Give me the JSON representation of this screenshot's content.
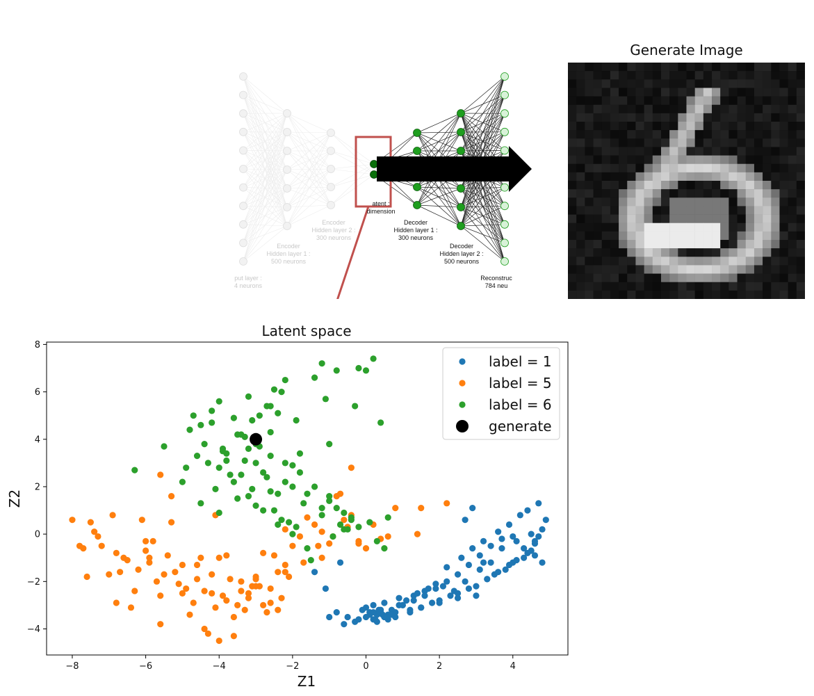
{
  "network": {
    "labels": {
      "input": [
        "put layer :",
        "4 neurons"
      ],
      "enc1": [
        "Encoder",
        "Hidden layer 1 :",
        "500 neurons"
      ],
      "enc2": [
        "Encoder",
        "Hidden layer 2 :",
        "300 neurons"
      ],
      "latent": [
        "atent :",
        "dimension"
      ],
      "dec1": [
        "Decoder",
        "Hidden layer 1 :",
        "300 neurons"
      ],
      "dec2": [
        "Decoder",
        "Hidden layer 2 :",
        "500 neurons"
      ],
      "recon": [
        "Reconstruc",
        "784 neu"
      ]
    },
    "colors": {
      "arrow": "#000000",
      "highlight_box": "#c0504d",
      "node_active": "#1f9e1f",
      "node_latent": "#0a6e0a",
      "node_faded": "#dddddd"
    }
  },
  "generated_image": {
    "title": "Generate Image"
  },
  "chart_data": {
    "type": "scatter",
    "title": "Latent space",
    "xlabel": "Z1",
    "ylabel": "Z2",
    "xlim": [
      -8.7,
      5.5
    ],
    "ylim": [
      -5.1,
      8.1
    ],
    "xticks": [
      -8,
      -6,
      -4,
      -2,
      0,
      2,
      4
    ],
    "yticks": [
      -4,
      -2,
      0,
      2,
      4,
      6,
      8
    ],
    "legend_position": "top-right",
    "series": [
      {
        "name": "label = 1",
        "color": "#1f77b4",
        "x": [
          0.1,
          0.3,
          0.5,
          0.2,
          0.4,
          0.0,
          0.6,
          0.8,
          1.0,
          1.2,
          1.5,
          1.8,
          2.0,
          2.3,
          2.5,
          2.8,
          3.0,
          3.3,
          3.5,
          3.8,
          4.0,
          4.3,
          4.5,
          4.6,
          4.7,
          4.8,
          4.9,
          4.4,
          4.2,
          3.9,
          3.6,
          3.2,
          2.9,
          2.6,
          2.2,
          1.9,
          1.6,
          1.3,
          1.1,
          0.9,
          0.7,
          -0.3,
          -0.5,
          -0.8,
          -0.6,
          -1.0,
          -0.2,
          0.2,
          0.5,
          0.9,
          1.4,
          1.7,
          2.1,
          2.4,
          2.7,
          3.1,
          3.4,
          3.7,
          4.1,
          4.5,
          3.0,
          2.5,
          2.0,
          1.5,
          1.2,
          0.8,
          0.6,
          0.3,
          0.1,
          0.0,
          -0.1,
          0.4,
          0.7,
          1.0,
          1.3,
          1.6,
          1.9,
          2.2,
          2.5,
          2.8,
          3.1,
          3.4,
          3.7,
          4.0,
          4.3,
          4.6,
          4.8,
          3.3,
          3.6,
          3.9,
          4.1,
          4.4,
          4.6,
          4.7,
          2.7,
          2.9,
          3.2,
          -1.4,
          -1.1,
          -0.7,
          0.2,
          0.35,
          0.45,
          0.55,
          0.25
        ],
        "y": [
          -3.3,
          -3.4,
          -3.5,
          -3.6,
          -3.2,
          -3.1,
          -3.4,
          -3.3,
          -3.0,
          -3.2,
          -3.1,
          -2.9,
          -2.8,
          -2.6,
          -2.5,
          -2.3,
          -2.2,
          -1.9,
          -1.7,
          -1.5,
          -1.2,
          -1.0,
          -0.7,
          -0.4,
          -0.1,
          0.2,
          0.6,
          1.0,
          0.8,
          0.4,
          0.1,
          -0.3,
          -0.6,
          -1.0,
          -1.4,
          -2.1,
          -2.4,
          -2.6,
          -2.8,
          -3.0,
          -3.2,
          -3.7,
          -3.5,
          -3.3,
          -3.8,
          -3.5,
          -3.6,
          -3.0,
          -2.9,
          -2.7,
          -2.5,
          -2.3,
          -2.2,
          -2.4,
          -2.0,
          -1.5,
          -1.2,
          -0.6,
          -0.3,
          0.0,
          -2.6,
          -2.7,
          -2.9,
          -3.1,
          -3.3,
          -3.5,
          -3.6,
          -3.7,
          -3.4,
          -3.5,
          -3.2,
          -3.3,
          -3.4,
          -3.0,
          -2.8,
          -2.6,
          -2.3,
          -2.0,
          -1.7,
          -1.3,
          -0.9,
          -0.5,
          -0.2,
          -0.1,
          -0.6,
          -0.9,
          -1.2,
          -1.9,
          -1.6,
          -1.3,
          -1.1,
          -0.8,
          -0.3,
          1.3,
          0.6,
          1.1,
          -1.2,
          -1.6,
          -2.3,
          -1.2,
          -3.3,
          -3.2,
          -3.4,
          -3.5,
          -3.6
        ]
      },
      {
        "name": "label = 5",
        "color": "#ff7f0e",
        "x": [
          -8.0,
          -7.8,
          -7.6,
          -7.4,
          -7.2,
          -7.0,
          -6.8,
          -6.6,
          -6.4,
          -6.2,
          -6.0,
          -5.8,
          -5.6,
          -5.4,
          -5.2,
          -5.0,
          -4.8,
          -4.6,
          -4.4,
          -4.2,
          -4.0,
          -3.8,
          -3.6,
          -3.4,
          -3.2,
          -3.0,
          -2.8,
          -2.6,
          -2.4,
          -2.2,
          -2.0,
          -1.8,
          -1.6,
          -1.4,
          -1.2,
          -1.0,
          -0.8,
          -0.6,
          -0.4,
          -0.2,
          0.0,
          0.2,
          0.4,
          -7.7,
          -7.3,
          -6.9,
          -6.5,
          -6.1,
          -5.7,
          -5.3,
          -4.9,
          -4.5,
          -4.1,
          -3.7,
          -3.3,
          -2.9,
          -2.5,
          -2.1,
          -1.7,
          -1.3,
          -0.9,
          -0.5,
          -6.7,
          -6.3,
          -5.9,
          -5.5,
          -5.1,
          -4.7,
          -4.3,
          -3.9,
          -3.5,
          -3.1,
          -2.7,
          -2.3,
          -5.0,
          -4.6,
          -4.2,
          -3.8,
          -3.4,
          -3.0,
          -2.6,
          -2.2,
          -6.0,
          -5.6,
          -4.4,
          -3.6,
          -2.8,
          -2.4,
          -4.0,
          -3.2,
          -0.4,
          -0.7,
          1.5,
          2.2,
          -5.6,
          -5.3,
          -4.1,
          -5.9,
          -6.8,
          -7.5,
          0.6,
          0.8,
          1.4,
          -0.2,
          -1.2,
          -2.2,
          -3.0
        ],
        "y": [
          0.6,
          -0.5,
          -1.8,
          0.1,
          -0.5,
          -1.7,
          -2.9,
          -1.0,
          -3.1,
          -1.5,
          -0.7,
          -0.3,
          -2.6,
          -0.9,
          -1.6,
          -2.5,
          -3.4,
          -1.3,
          -2.4,
          -1.7,
          -1.0,
          -2.8,
          -3.5,
          -2.0,
          -2.7,
          -1.8,
          -0.8,
          -2.3,
          -1.6,
          0.2,
          -0.5,
          -0.1,
          0.7,
          0.4,
          0.1,
          -0.4,
          1.6,
          0.6,
          0.8,
          -0.3,
          -0.6,
          0.4,
          -0.2,
          -0.6,
          -0.1,
          0.8,
          -1.1,
          0.6,
          -2.0,
          0.5,
          -2.3,
          -1.0,
          -3.1,
          -1.9,
          -3.2,
          -2.2,
          -0.9,
          -1.8,
          -1.2,
          -0.5,
          -0.1,
          0.3,
          -1.6,
          -2.4,
          -1.2,
          -1.7,
          -2.1,
          -2.9,
          -4.2,
          -2.6,
          -3.0,
          -2.2,
          -3.3,
          -2.7,
          -1.3,
          -1.9,
          -2.5,
          -0.9,
          -2.4,
          -1.9,
          -2.9,
          -1.6,
          -0.3,
          -3.8,
          -4.0,
          -4.3,
          -3.0,
          -3.2,
          -4.5,
          -2.5,
          2.8,
          1.7,
          1.1,
          1.3,
          2.5,
          1.6,
          0.8,
          -1.0,
          -0.8,
          0.5,
          -0.1,
          1.1,
          0.0,
          -0.4,
          -1.0,
          -1.3,
          -2.2
        ]
      },
      {
        "name": "label = 6",
        "color": "#2ca02c",
        "x": [
          -6.3,
          -5.5,
          -5.0,
          -4.8,
          -4.6,
          -4.4,
          -4.2,
          -4.0,
          -3.8,
          -3.6,
          -3.4,
          -3.2,
          -3.0,
          -2.8,
          -2.6,
          -2.4,
          -2.2,
          -2.0,
          -1.8,
          -1.6,
          -1.4,
          -1.2,
          -1.0,
          -0.8,
          -0.6,
          -0.4,
          -0.2,
          0.0,
          0.2,
          0.4,
          0.6,
          -4.5,
          -4.1,
          -3.7,
          -3.3,
          -2.9,
          -2.5,
          -2.1,
          -1.7,
          -4.3,
          -3.9,
          -3.5,
          -3.1,
          -2.7,
          -2.3,
          -1.9,
          -4.0,
          -3.6,
          -3.2,
          -2.8,
          -2.4,
          -2.0,
          -1.6,
          -1.2,
          -0.8,
          -3.8,
          -3.4,
          -3.0,
          -2.6,
          -2.2,
          -1.8,
          -1.4,
          -1.0,
          -0.6,
          -0.2,
          -4.9,
          -4.5,
          -2.9,
          -2.5,
          -3.0,
          -2.6,
          -3.2,
          -2.7,
          -3.5,
          -2.3,
          -2.0,
          -1.2,
          -0.7,
          0.3,
          0.1,
          -1.5,
          -1.0,
          -0.5,
          -0.4,
          -4.7,
          -4.2,
          -3.3,
          -3.9,
          -2.4,
          -2.2,
          -1.9,
          -1.1,
          -0.3,
          0.5,
          -0.9,
          -4.0,
          -3.1,
          -2.6
        ],
        "y": [
          2.7,
          3.7,
          2.2,
          4.4,
          3.3,
          3.8,
          5.2,
          5.6,
          3.4,
          4.9,
          4.2,
          5.8,
          3.0,
          2.6,
          5.4,
          1.7,
          6.5,
          2.0,
          3.4,
          1.7,
          6.6,
          7.2,
          3.8,
          6.9,
          0.2,
          0.7,
          7.0,
          6.9,
          7.4,
          4.7,
          0.7,
          1.3,
          1.9,
          2.5,
          3.1,
          3.7,
          1.0,
          0.5,
          1.3,
          3.0,
          3.6,
          4.2,
          4.8,
          5.4,
          6.0,
          0.3,
          2.8,
          2.2,
          1.6,
          1.0,
          0.4,
          0.0,
          -0.6,
          0.8,
          1.1,
          3.1,
          2.5,
          3.8,
          4.3,
          3.0,
          2.6,
          2.0,
          1.4,
          0.9,
          0.3,
          2.8,
          4.6,
          5.0,
          6.1,
          1.2,
          1.8,
          3.6,
          2.4,
          1.5,
          0.6,
          2.9,
          1.1,
          0.4,
          -0.3,
          0.5,
          -1.1,
          1.6,
          0.2,
          0.6,
          5.0,
          4.7,
          4.1,
          3.5,
          5.1,
          2.2,
          4.8,
          5.7,
          5.4,
          -0.6,
          -0.1,
          0.9,
          1.9,
          3.3
        ]
      },
      {
        "name": "generate",
        "color": "#000000",
        "x": [
          -3.0
        ],
        "y": [
          4.0
        ]
      }
    ]
  }
}
